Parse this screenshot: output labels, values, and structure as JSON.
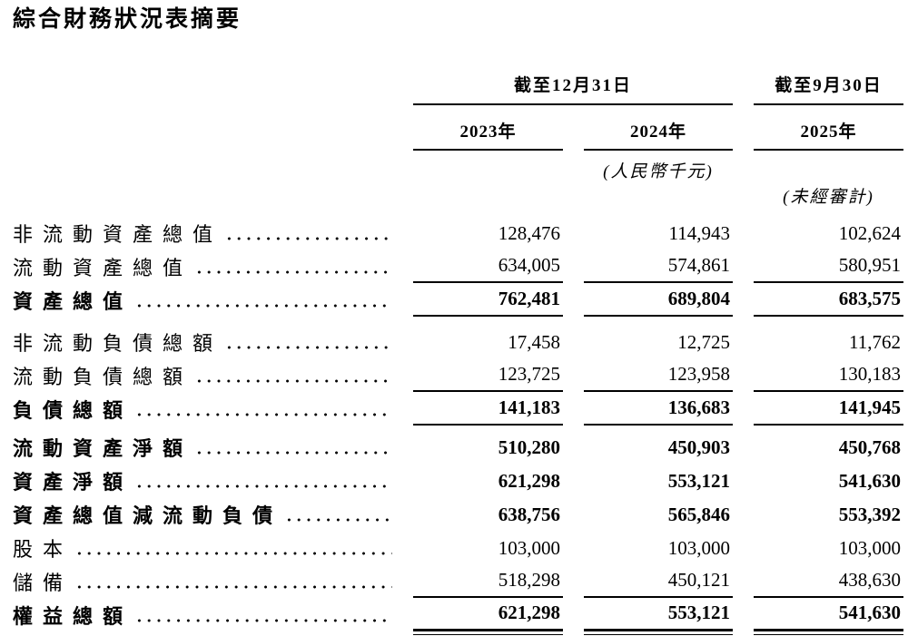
{
  "title": "綜合財務狀況表摘要",
  "table": {
    "group_headers": [
      "截至12月31日",
      "截至9月30日"
    ],
    "year_headers": [
      "2023年",
      "2024年",
      "2025年"
    ],
    "unit_note": "(人民幣千元)",
    "unaudited_note": "(未經審計)",
    "rows": [
      {
        "label": "非流動資產總值",
        "values": [
          "128,476",
          "114,943",
          "102,624"
        ]
      },
      {
        "label": "流動資產總值",
        "values": [
          "634,005",
          "574,861",
          "580,951"
        ]
      },
      {
        "label": "資產總值",
        "values": [
          "762,481",
          "689,804",
          "683,575"
        ]
      },
      {
        "label": "非流動負債總額",
        "values": [
          "17,458",
          "12,725",
          "11,762"
        ]
      },
      {
        "label": "流動負債總額",
        "values": [
          "123,725",
          "123,958",
          "130,183"
        ]
      },
      {
        "label": "負債總額",
        "values": [
          "141,183",
          "136,683",
          "141,945"
        ]
      },
      {
        "label": "流動資產淨額",
        "values": [
          "510,280",
          "450,903",
          "450,768"
        ]
      },
      {
        "label": "資產淨額",
        "values": [
          "621,298",
          "553,121",
          "541,630"
        ]
      },
      {
        "label": "資產總值減流動負債",
        "values": [
          "638,756",
          "565,846",
          "553,392"
        ]
      },
      {
        "label": "股本",
        "values": [
          "103,000",
          "103,000",
          "103,000"
        ]
      },
      {
        "label": "儲備",
        "values": [
          "518,298",
          "450,121",
          "438,630"
        ]
      },
      {
        "label": "權益總額",
        "values": [
          "621,298",
          "553,121",
          "541,630"
        ]
      }
    ]
  }
}
